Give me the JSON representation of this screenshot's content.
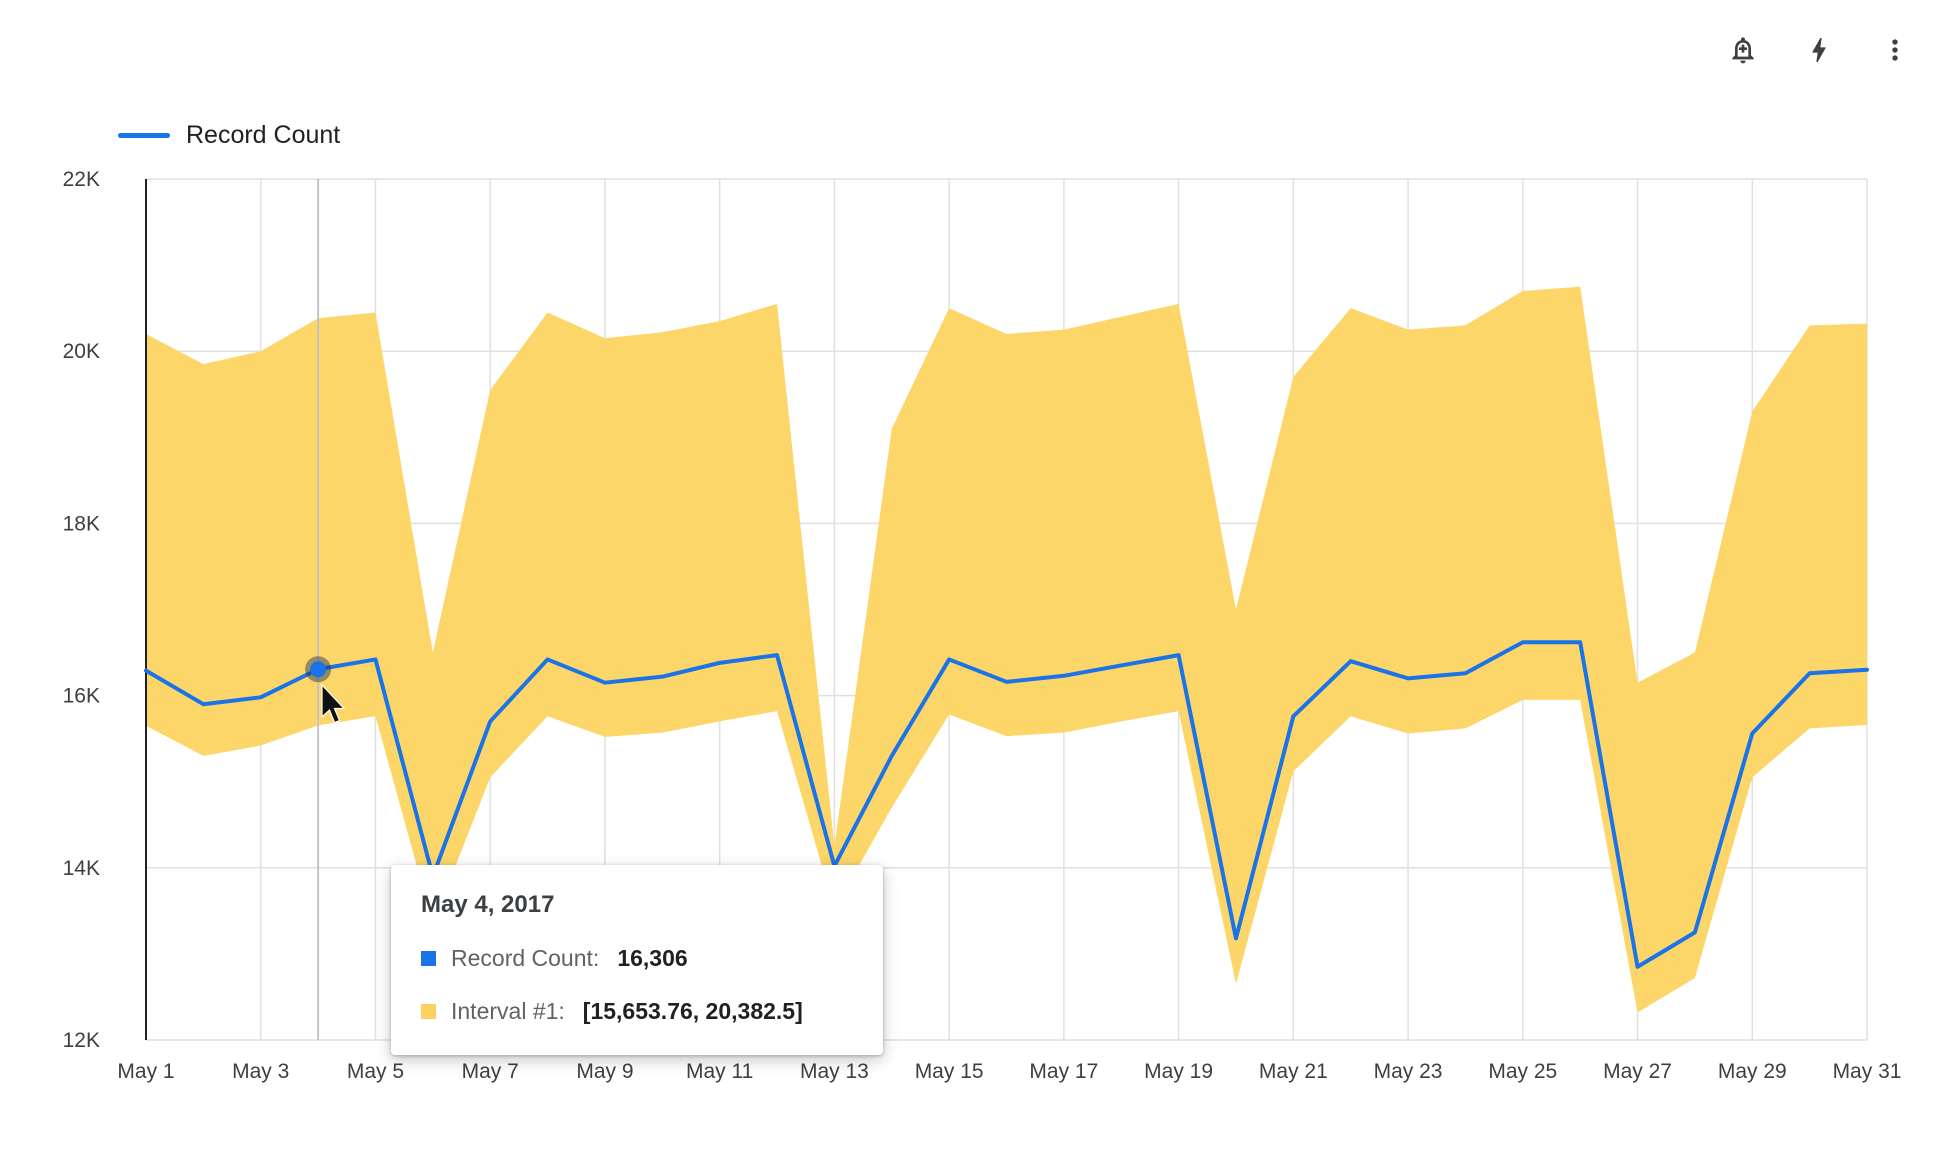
{
  "toolbar": {
    "buttons": [
      {
        "name": "add-alert-button",
        "icon": "bell-plus-icon"
      },
      {
        "name": "quick-actions-button",
        "icon": "lightning-icon"
      },
      {
        "name": "more-options-button",
        "icon": "kebab-menu-icon"
      }
    ]
  },
  "legend": {
    "label": "Record Count",
    "color": "#1a73e8"
  },
  "tooltip": {
    "title": "May 4, 2017",
    "rows": [
      {
        "swatch": "#1a73e8",
        "label": "Record Count:",
        "value": "16,306"
      },
      {
        "swatch": "#fbd15f",
        "label": "Interval #1:",
        "value": "[15,653.76, 20,382.5]"
      }
    ]
  },
  "chart_data": {
    "type": "line",
    "title": "",
    "xlabel": "",
    "ylabel": "",
    "ylim": [
      12000,
      22000
    ],
    "grid": true,
    "legend_position": "top-left",
    "y_ticks": [
      "22K",
      "20K",
      "18K",
      "16K",
      "14K",
      "12K"
    ],
    "y_tick_values": [
      22000,
      20000,
      18000,
      16000,
      14000,
      12000
    ],
    "x_tick_labels": [
      "May 1",
      "May 3",
      "May 5",
      "May 7",
      "May 9",
      "May 11",
      "May 13",
      "May 15",
      "May 17",
      "May 19",
      "May 21",
      "May 23",
      "May 25",
      "May 27",
      "May 29",
      "May 31"
    ],
    "x_days": [
      1,
      2,
      3,
      4,
      5,
      6,
      7,
      8,
      9,
      10,
      11,
      12,
      13,
      14,
      15,
      16,
      17,
      18,
      19,
      20,
      21,
      22,
      23,
      24,
      25,
      26,
      27,
      28,
      29,
      30,
      31
    ],
    "series": [
      {
        "name": "Record Count",
        "color": "#1a73e8",
        "values": [
          16290,
          15900,
          15980,
          16306,
          16420,
          13900,
          15700,
          16420,
          16150,
          16220,
          16380,
          16470,
          14020,
          15300,
          16420,
          16160,
          16230,
          16350,
          16470,
          13180,
          15760,
          16400,
          16200,
          16260,
          16620,
          16620,
          12850,
          13250,
          15560,
          16260,
          16300
        ]
      }
    ],
    "interval": {
      "name": "Interval #1",
      "color": "#fcd668",
      "lower": [
        15650,
        15300,
        15420,
        15654,
        15760,
        13350,
        15050,
        15760,
        15520,
        15570,
        15700,
        15820,
        13520,
        14700,
        15780,
        15530,
        15570,
        15700,
        15820,
        12650,
        15120,
        15760,
        15560,
        15620,
        15950,
        15950,
        12320,
        12720,
        15050,
        15620,
        15660
      ],
      "upper": [
        20200,
        19850,
        20000,
        20383,
        20450,
        16500,
        19550,
        20450,
        20150,
        20220,
        20350,
        20550,
        14250,
        19100,
        20500,
        20200,
        20250,
        20400,
        20550,
        17000,
        19700,
        20500,
        20250,
        20300,
        20700,
        20750,
        16150,
        16500,
        19300,
        20300,
        20320
      ]
    },
    "highlight": {
      "index": 3,
      "value": 16306,
      "date": "May 4, 2017"
    },
    "colors": {
      "grid": "#e0e0e0",
      "axis_text": "#3c4043",
      "axis_line": "#202124",
      "crosshair": "#c4c4c4"
    }
  }
}
